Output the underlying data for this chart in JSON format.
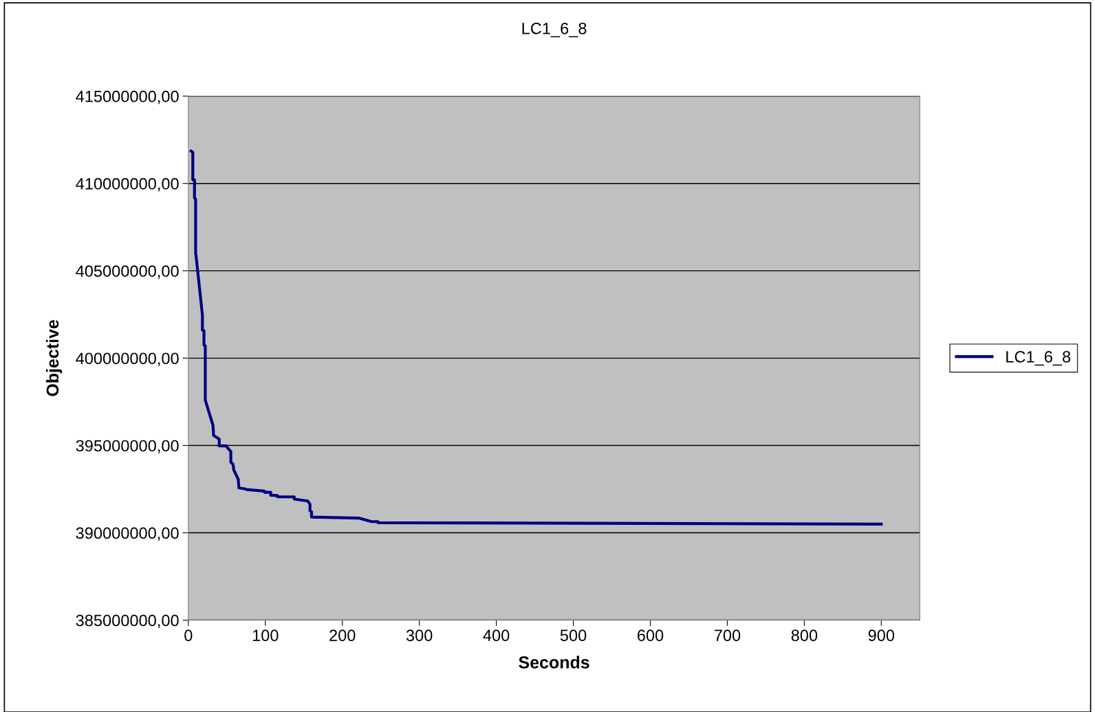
{
  "chart_data": {
    "type": "line",
    "title": "LC1_6_8",
    "xlabel": "Seconds",
    "ylabel": "Objective",
    "xlim": [
      0,
      950
    ],
    "xticks": [
      0,
      100,
      200,
      300,
      400,
      500,
      600,
      700,
      800,
      900
    ],
    "ylim": [
      385000000,
      415000000
    ],
    "yticks": [
      {
        "value": 385000000,
        "label": "385000000,00"
      },
      {
        "value": 390000000,
        "label": "390000000,00"
      },
      {
        "value": 395000000,
        "label": "395000000,00"
      },
      {
        "value": 400000000,
        "label": "400000000,00"
      },
      {
        "value": 405000000,
        "label": "405000000,00"
      },
      {
        "value": 410000000,
        "label": "410000000,00"
      },
      {
        "value": 415000000,
        "label": "415000000,00"
      }
    ],
    "grid": "y",
    "legend": "right",
    "marker": "none",
    "line_style": "solid",
    "series": [
      {
        "name": "LC1_6_8",
        "color": "#000080",
        "x": [
          3.7,
          5.8,
          5.8,
          8.0,
          8.0,
          9.5,
          9.5,
          9.9,
          18.3,
          18.3,
          20.3,
          20.3,
          22.0,
          22.0,
          32.0,
          32.8,
          40.1,
          40.1,
          48.8,
          55.2,
          55.2,
          58.1,
          59.0,
          64.8,
          65.7,
          75.0,
          75.6,
          98.9,
          98.9,
          107.0,
          107.0,
          115.8,
          115.8,
          137.6,
          137.6,
          155.1,
          158.0,
          158.0,
          160.0,
          160.0,
          222.0,
          238.0,
          246.2,
          246.2,
          900
        ],
        "values": [
          411850000,
          411780000,
          410210000,
          410210000,
          409160000,
          409100000,
          406000000,
          405900000,
          402460000,
          401600000,
          401570000,
          400750000,
          400700000,
          397600000,
          396160000,
          395570000,
          395370000,
          394980000,
          394980000,
          394650000,
          394050000,
          393920000,
          393600000,
          393070000,
          392570000,
          392500000,
          392480000,
          392390000,
          392320000,
          392320000,
          392150000,
          392130000,
          392060000,
          392060000,
          391930000,
          391820000,
          391630000,
          391260000,
          391210000,
          390900000,
          390840000,
          390640000,
          390640000,
          390580000,
          390500000
        ]
      }
    ]
  }
}
